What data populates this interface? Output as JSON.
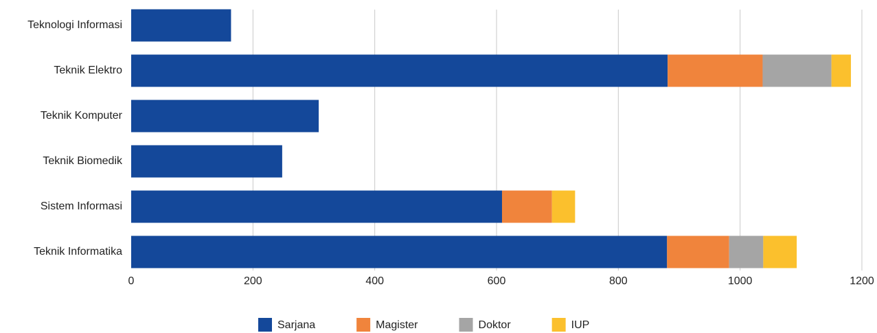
{
  "chart_data": {
    "type": "stacked_barh",
    "categories": [
      "Teknologi Informasi",
      "Teknik Elektro",
      "Teknik Komputer",
      "Teknik Biomedik",
      "Sistem Informasi",
      "Teknik Informatika"
    ],
    "series": [
      {
        "name": "Sarjana",
        "color": "#14489a",
        "values": [
          164,
          881,
          308,
          248,
          609,
          880
        ]
      },
      {
        "name": "Magister",
        "color": "#f0843c",
        "values": [
          0,
          156,
          0,
          0,
          82,
          102
        ]
      },
      {
        "name": "Doktor",
        "color": "#a5a5a5",
        "values": [
          0,
          113,
          0,
          0,
          0,
          56
        ]
      },
      {
        "name": "IUP",
        "color": "#fbc02d",
        "values": [
          0,
          32,
          0,
          0,
          38,
          55
        ]
      }
    ],
    "xlim": [
      0,
      1200
    ],
    "xticks": [
      0,
      200,
      400,
      600,
      800,
      1000,
      1200
    ],
    "grid": true,
    "legend": "bottom"
  }
}
